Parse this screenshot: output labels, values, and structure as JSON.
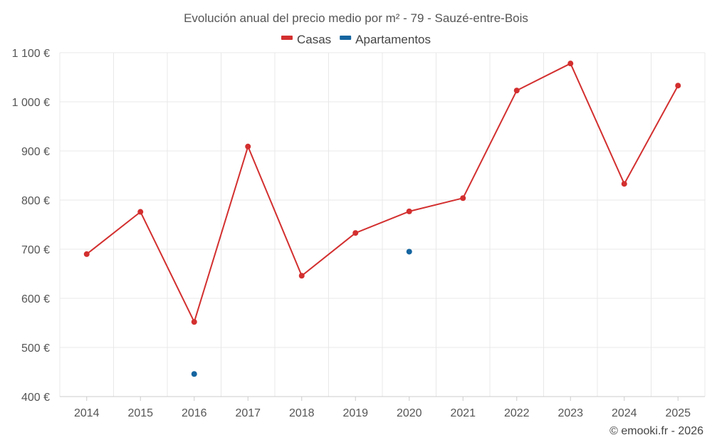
{
  "chart_data": {
    "type": "line",
    "title": "Evolución anual del precio medio por m² - 79 - Sauzé-entre-Bois",
    "x": [
      "2014",
      "2015",
      "2016",
      "2017",
      "2018",
      "2019",
      "2020",
      "2021",
      "2022",
      "2023",
      "2024",
      "2025"
    ],
    "ylim": [
      400,
      1100
    ],
    "yticks": [
      400,
      500,
      600,
      700,
      800,
      900,
      1000,
      1100
    ],
    "ytick_labels": [
      "400 €",
      "500 €",
      "600 €",
      "700 €",
      "800 €",
      "900 €",
      "1 000 €",
      "1 100 €"
    ],
    "grid": true,
    "legend_position": "top-center",
    "series": [
      {
        "name": "Casas",
        "color": "#d32f2f",
        "show_line": true,
        "values": [
          690,
          776,
          552,
          909,
          646,
          733,
          777,
          804,
          1023,
          1078,
          833,
          1033
        ]
      },
      {
        "name": "Apartamentos",
        "color": "#1565a0",
        "show_line": false,
        "values": [
          null,
          null,
          446,
          null,
          null,
          null,
          695,
          null,
          null,
          null,
          null,
          null
        ]
      }
    ],
    "credit": "© emooki.fr - 2026"
  }
}
